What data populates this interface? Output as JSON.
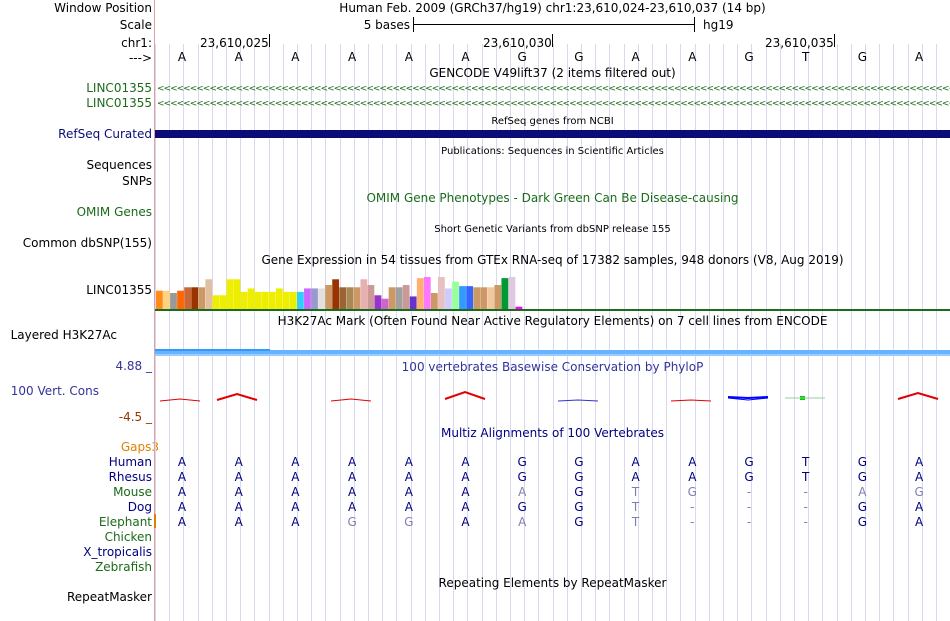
{
  "header": {
    "window_position_label": "Window Position",
    "scale_label": "Scale",
    "chr_label": "chr1:",
    "strand_label": "--->",
    "assembly_text": "Human Feb. 2009 (GRCh37/hg19)   chr1:23,610,024-23,610,037 (14 bp)",
    "scale_text": "5 bases",
    "scale_db": "hg19",
    "positions": [
      "23,610,025",
      "23,610,030",
      "23,610,035"
    ]
  },
  "bases": [
    "A",
    "A",
    "A",
    "A",
    "A",
    "A",
    "G",
    "G",
    "A",
    "A",
    "G",
    "T",
    "G",
    "A"
  ],
  "tracks": {
    "gencode": {
      "title": "GENCODE V49lift37 (2 items filtered out)",
      "items": [
        "LINC01355",
        "LINC01355"
      ],
      "arrows": "<<<<<<<<<<<<<<<<<<<<<<<<<<<<<<<<<<<<<<<<<<<<<<<<<<<<<<<<<<<<<<<<<<<<<<<<<<<<<<<<<<<<<<<<<<<<<<<<<<<<<<<<<<<<<<<<<<<<<<<<<<<<<<<<<<<<<<<<<<<<<<<<<<<<<<<<<<<<<<<<"
    },
    "refseq": {
      "title": "RefSeq genes from NCBI",
      "label": "RefSeq Curated"
    },
    "publications": {
      "title": "Publications: Sequences in Scientific Articles",
      "label": "Sequences"
    },
    "snps": {
      "label": "SNPs"
    },
    "omim": {
      "title": "OMIM Gene Phenotypes - Dark Green Can Be Disease-causing",
      "label": "OMIM Genes"
    },
    "dbsnp": {
      "title": "Short Genetic Variants from dbSNP release 155",
      "label": "Common dbSNP(155)"
    },
    "gtex": {
      "title": "Gene Expression in 54 tissues from GTEx RNA-seq of 17382 samples, 948 donors (V8, Aug 2019)",
      "label": "LINC01355",
      "bars": [
        {
          "v": 0.8,
          "c": "#ff8c1a"
        },
        {
          "v": 0.8,
          "c": "#ffd280"
        },
        {
          "v": 0.7,
          "c": "#999999"
        },
        {
          "v": 0.8,
          "c": "#ff6600"
        },
        {
          "v": 0.95,
          "c": "#cc6633"
        },
        {
          "v": 0.95,
          "c": "#993300"
        },
        {
          "v": 0.95,
          "c": "#cc9966"
        },
        {
          "v": 1.3,
          "c": "#e0c0a0"
        },
        {
          "v": 0.6,
          "c": "#eeee00"
        },
        {
          "v": 0.6,
          "c": "#eeee00"
        },
        {
          "v": 1.3,
          "c": "#eeee00"
        },
        {
          "v": 1.3,
          "c": "#eeee00"
        },
        {
          "v": 0.75,
          "c": "#eeee00"
        },
        {
          "v": 0.9,
          "c": "#eeee00"
        },
        {
          "v": 0.75,
          "c": "#eeee00"
        },
        {
          "v": 0.75,
          "c": "#eeee00"
        },
        {
          "v": 0.75,
          "c": "#eeee00"
        },
        {
          "v": 0.9,
          "c": "#eeee00"
        },
        {
          "v": 0.75,
          "c": "#eeee00"
        },
        {
          "v": 0.75,
          "c": "#eeee00"
        },
        {
          "v": 0.75,
          "c": "#33ccff"
        },
        {
          "v": 0.9,
          "c": "#cc66ff"
        },
        {
          "v": 0.9,
          "c": "#9999cc"
        },
        {
          "v": 0.9,
          "c": "#e0e0e0"
        },
        {
          "v": 1.05,
          "c": "#cc9966"
        },
        {
          "v": 1.3,
          "c": "#993300"
        },
        {
          "v": 0.95,
          "c": "#996633"
        },
        {
          "v": 0.95,
          "c": "#aa8855"
        },
        {
          "v": 0.95,
          "c": "#cc9966"
        },
        {
          "v": 1.3,
          "c": "#e8b0b0"
        },
        {
          "v": 1.05,
          "c": "#cc9999"
        },
        {
          "v": 0.6,
          "c": "#9933cc"
        },
        {
          "v": 0.45,
          "c": "#cc66cc"
        },
        {
          "v": 0.95,
          "c": "#cc9966"
        },
        {
          "v": 0.95,
          "c": "#a0a0a0"
        },
        {
          "v": 1.05,
          "c": "#cc9999"
        },
        {
          "v": 0.55,
          "c": "#6633cc"
        },
        {
          "v": 1.35,
          "c": "#ffb070"
        },
        {
          "v": 1.4,
          "c": "#ff77ff"
        },
        {
          "v": 0.7,
          "c": "#cc9966"
        },
        {
          "v": 1.4,
          "c": "#e8c0c0"
        },
        {
          "v": 0.9,
          "c": "#ccccff"
        },
        {
          "v": 1.2,
          "c": "#99ff99"
        },
        {
          "v": 1.0,
          "c": "#3399ff"
        },
        {
          "v": 1.0,
          "c": "#3366ff"
        },
        {
          "v": 0.95,
          "c": "#cc9966"
        },
        {
          "v": 0.95,
          "c": "#cc9966"
        },
        {
          "v": 0.95,
          "c": "#f0c8a0"
        },
        {
          "v": 1.05,
          "c": "#cc9966"
        },
        {
          "v": 1.35,
          "c": "#009933"
        },
        {
          "v": 1.4,
          "c": "#e0c8e0"
        },
        {
          "v": 0.1,
          "c": "#ff00ff"
        }
      ]
    },
    "h3k27ac": {
      "title": "H3K27Ac Mark (Often Found Near Active Regulatory Elements) on 7 cell lines from ENCODE",
      "label": "Layered H3K27Ac"
    },
    "phylop": {
      "title": "100 vertebrates Basewise Conservation by PhyloP",
      "label": "100 Vert. Cons",
      "max": "4.88 _",
      "min": "-4.5 _"
    },
    "multiz": {
      "title": "Multiz Alignments of 100 Vertebrates",
      "gaps_label": "Gaps3",
      "species": [
        {
          "name": "Human",
          "color": "#000080",
          "bases": [
            "A",
            "A",
            "A",
            "A",
            "A",
            "A",
            "G",
            "G",
            "A",
            "A",
            "G",
            "T",
            "G",
            "A"
          ],
          "dim": []
        },
        {
          "name": "Rhesus",
          "color": "#000080",
          "bases": [
            "A",
            "A",
            "A",
            "A",
            "A",
            "A",
            "G",
            "G",
            "A",
            "A",
            "G",
            "T",
            "G",
            "A"
          ],
          "dim": []
        },
        {
          "name": "Mouse",
          "color": "#1a6b1a",
          "bases": [
            "A",
            "A",
            "A",
            "A",
            "A",
            "A",
            "A",
            "G",
            "T",
            "G",
            "-",
            "-",
            "A",
            "G"
          ],
          "dim": [
            6,
            8,
            9,
            10,
            11,
            12,
            13
          ]
        },
        {
          "name": "Dog",
          "color": "#000080",
          "bases": [
            "A",
            "A",
            "A",
            "A",
            "A",
            "A",
            "G",
            "G",
            "T",
            "-",
            "-",
            "-",
            "G",
            "A"
          ],
          "dim": [
            8,
            9,
            10,
            11
          ]
        },
        {
          "name": "Elephant",
          "color": "#1a6b1a",
          "bases": [
            "A",
            "A",
            "A",
            "G",
            "G",
            "A",
            "A",
            "G",
            "T",
            "-",
            "-",
            "-",
            "G",
            "A"
          ],
          "dim": [
            3,
            4,
            6,
            8,
            9,
            10,
            11
          ]
        },
        {
          "name": "Chicken",
          "color": "#1a6b1a",
          "bases": [],
          "dim": []
        },
        {
          "name": "X_tropicalis",
          "color": "#000080",
          "bases": [],
          "dim": []
        },
        {
          "name": "Zebrafish",
          "color": "#1a6b1a",
          "bases": [],
          "dim": []
        }
      ]
    },
    "repeatmasker": {
      "title": "Repeating Elements by RepeatMasker",
      "label": "RepeatMasker"
    }
  },
  "colors": {
    "gencode_green": "#1a6b1a",
    "refseq_navy": "#0c0c78",
    "base_navy": "#000080",
    "dim_base": "#8080b0",
    "phylop_blue": "#333399",
    "h3k_blue": "#66b3ff"
  }
}
